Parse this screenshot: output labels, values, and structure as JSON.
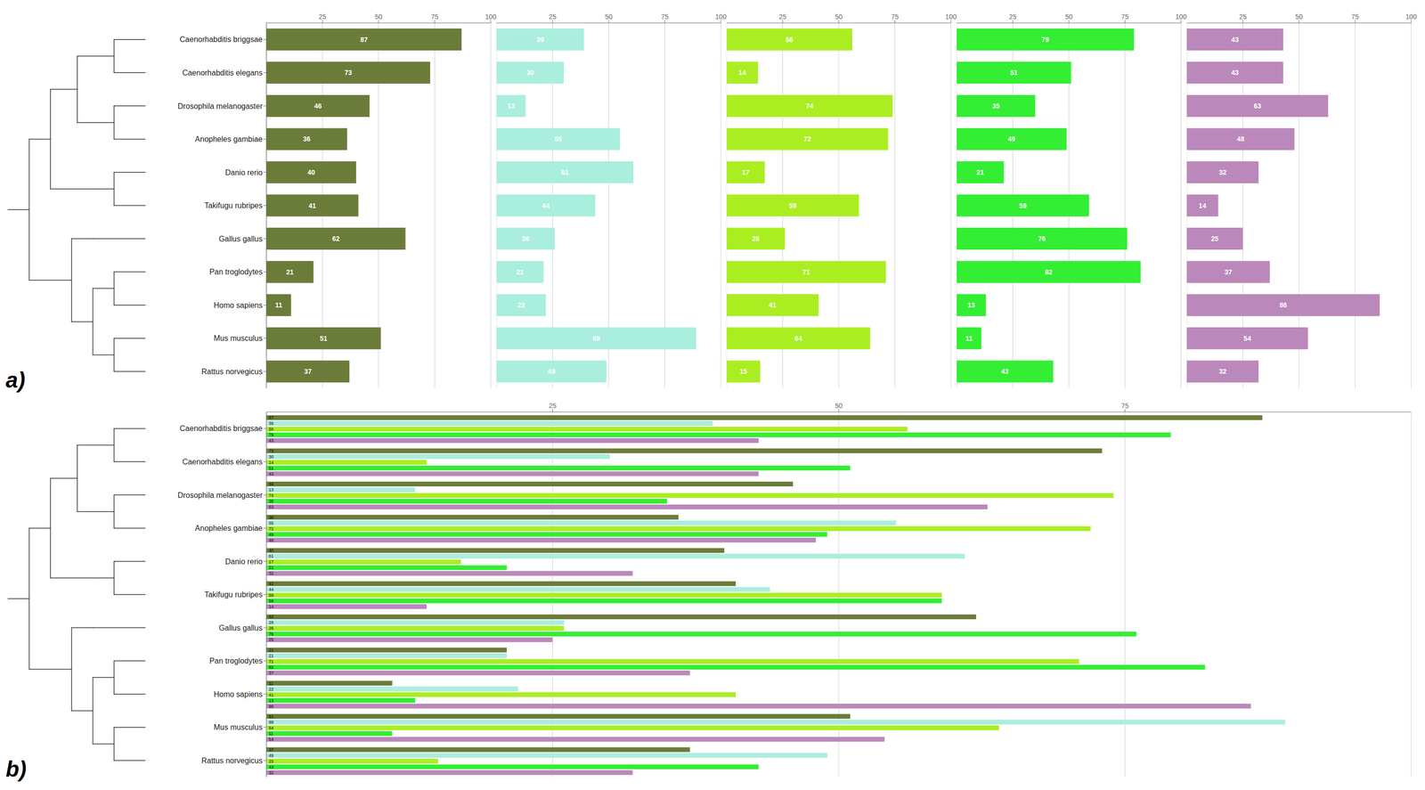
{
  "chart_data": [
    {
      "type": "bar",
      "orientation": "horizontal",
      "categories": [
        "Caenorhabditis briggsae",
        "Caenorhabditis elegans",
        "Drosophila melanogaster",
        "Anopheles gambiae",
        "Danio rerio",
        "Takifugu rubripes",
        "Gallus gallus",
        "Pan troglodytes",
        "Homo sapiens",
        "Mus musculus",
        "Rattus norvegicus"
      ],
      "values": [
        87,
        73,
        46,
        36,
        40,
        41,
        62,
        21,
        11,
        51,
        37
      ],
      "color": "#6b7c3a",
      "xlim": [
        0,
        100
      ],
      "xticks": [
        25,
        50,
        75,
        100
      ],
      "grid": true,
      "data_labels": true,
      "annotations": [
        "a)"
      ]
    },
    {
      "type": "bar",
      "orientation": "horizontal",
      "categories": [
        "Caenorhabditis briggsae",
        "Caenorhabditis elegans",
        "Drosophila melanogaster",
        "Anopheles gambiae",
        "Danio rerio",
        "Takifugu rubripes",
        "Gallus gallus",
        "Pan troglodytes",
        "Homo sapiens",
        "Mus musculus",
        "Rattus norvegicus"
      ],
      "values": [
        39,
        30,
        13,
        55,
        61,
        44,
        26,
        21,
        22,
        89,
        49
      ],
      "color": "#aaeedd",
      "xlim": [
        0,
        100
      ],
      "xticks": [
        25,
        50,
        75,
        100
      ],
      "grid": true,
      "data_labels": true,
      "tick_labels": "x"
    },
    {
      "type": "bar",
      "orientation": "horizontal",
      "categories": [
        "Caenorhabditis briggsae",
        "Caenorhabditis elegans",
        "Drosophila melanogaster",
        "Anopheles gambiae",
        "Danio rerio",
        "Takifugu rubripes",
        "Gallus gallus",
        "Pan troglodytes",
        "Homo sapiens",
        "Mus musculus",
        "Rattus norvegicus"
      ],
      "values": [
        56,
        14,
        74,
        72,
        17,
        59,
        26,
        71,
        41,
        64,
        15
      ],
      "color": "#aaee22",
      "xlim": [
        0,
        100
      ],
      "xticks": [
        25,
        50,
        75,
        100
      ],
      "grid": true,
      "data_labels": true,
      "tick_labels": "x"
    },
    {
      "type": "bar",
      "orientation": "horizontal",
      "categories": [
        "Caenorhabditis briggsae",
        "Caenorhabditis elegans",
        "Drosophila melanogaster",
        "Anopheles gambiae",
        "Danio rerio",
        "Takifugu rubripes",
        "Gallus gallus",
        "Pan troglodytes",
        "Homo sapiens",
        "Mus musculus",
        "Rattus norvegicus"
      ],
      "values": [
        79,
        51,
        35,
        49,
        21,
        59,
        76,
        82,
        13,
        11,
        43
      ],
      "color": "#33ee33",
      "xlim": [
        0,
        100
      ],
      "xticks": [
        25,
        50,
        75,
        100
      ],
      "grid": true,
      "data_labels": true,
      "tick_labels": "x"
    },
    {
      "type": "bar",
      "orientation": "horizontal",
      "categories": [
        "Caenorhabditis briggsae",
        "Caenorhabditis elegans",
        "Drosophila melanogaster",
        "Anopheles gambiae",
        "Danio rerio",
        "Takifugu rubripes",
        "Gallus gallus",
        "Pan troglodytes",
        "Homo sapiens",
        "Mus musculus",
        "Rattus norvegicus"
      ],
      "values": [
        43,
        43,
        63,
        48,
        32,
        14,
        25,
        37,
        86,
        54,
        32
      ],
      "color": "#bb88bb",
      "xlim": [
        0,
        100
      ],
      "xticks": [
        25,
        50,
        75,
        100
      ],
      "grid": true,
      "data_labels": true,
      "tick_labels": "x"
    },
    {
      "type": "bar",
      "orientation": "horizontal",
      "categories": [
        "Caenorhabditis briggsae",
        "Caenorhabditis elegans",
        "Drosophila melanogaster",
        "Anopheles gambiae",
        "Danio rerio",
        "Takifugu rubripes",
        "Gallus gallus",
        "Pan troglodytes",
        "Homo sapiens",
        "Mus musculus",
        "Rattus norvegicus"
      ],
      "series": [
        {
          "color": "#6b7c3a",
          "values": [
            87,
            73,
            46,
            36,
            40,
            41,
            62,
            21,
            11,
            51,
            37
          ]
        },
        {
          "color": "#aaeedd",
          "values": [
            39,
            30,
            13,
            55,
            61,
            44,
            26,
            21,
            22,
            89,
            49
          ]
        },
        {
          "color": "#aaee22",
          "values": [
            56,
            14,
            74,
            72,
            17,
            59,
            26,
            71,
            41,
            64,
            15
          ]
        },
        {
          "color": "#33ee33",
          "values": [
            79,
            51,
            35,
            49,
            21,
            59,
            76,
            82,
            13,
            11,
            43
          ]
        },
        {
          "color": "#bb88bb",
          "values": [
            43,
            43,
            63,
            48,
            32,
            14,
            25,
            37,
            86,
            54,
            32
          ]
        }
      ],
      "xlim": [
        0,
        100
      ],
      "xticks": [
        25,
        50,
        75
      ],
      "grid": true,
      "data_labels": true,
      "annotations": [
        "b)"
      ]
    }
  ]
}
